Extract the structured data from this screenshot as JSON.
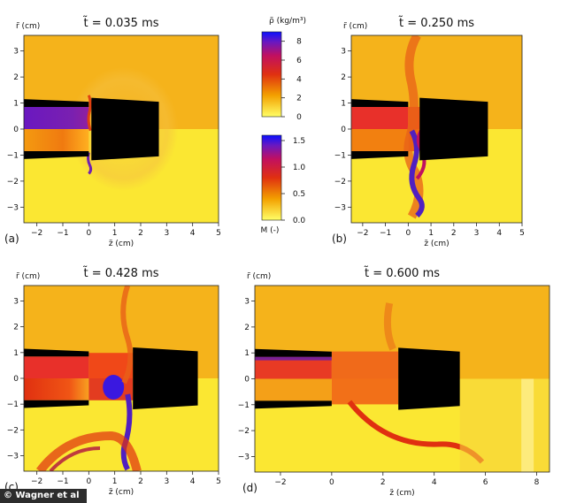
{
  "chart_data": [
    {
      "type": "heatmap",
      "panel_label": "(a)",
      "title": "t̃ = 0.035 ms",
      "xlabel": "z̃ (cm)",
      "ylabel": "r̃ (cm)",
      "xlim": [
        -2.5,
        5
      ],
      "ylim": [
        -3.6,
        3.6
      ],
      "xticks": [
        -2,
        -1,
        0,
        1,
        2,
        3,
        4,
        5
      ],
      "yticks": [
        -3,
        -2,
        -1,
        0,
        1,
        2,
        3
      ],
      "nozzle_tip_z": 0,
      "obstacle_z": [
        0.1,
        2.7
      ],
      "density_stem_peak_kg_m3": 6.5,
      "mach_region_peak": 0.8
    },
    {
      "type": "heatmap",
      "panel_label": "(b)",
      "title": "t̃ = 0.250 ms",
      "xlabel": "z̃ (cm)",
      "ylabel": "r̃ (cm)",
      "xlim": [
        -2.5,
        5
      ],
      "ylim": [
        -3.6,
        3.6
      ],
      "xticks": [
        -2,
        -1,
        0,
        1,
        2,
        3,
        4,
        5
      ],
      "yticks": [
        -3,
        -2,
        -1,
        0,
        1,
        2,
        3
      ],
      "nozzle_tip_z": 0,
      "obstacle_z": [
        0.5,
        3.5
      ],
      "mach_region_peak": 1.3
    },
    {
      "type": "heatmap",
      "panel_label": "(c)",
      "title": "t̃ = 0.428 ms",
      "xlabel": "z̃ (cm)",
      "ylabel": "r̃ (cm)",
      "xlim": [
        -2.5,
        5
      ],
      "ylim": [
        -3.6,
        3.6
      ],
      "xticks": [
        -2,
        -1,
        0,
        1,
        2,
        3,
        4,
        5
      ],
      "yticks": [
        -3,
        -2,
        -1,
        0,
        1,
        2,
        3
      ],
      "nozzle_tip_z": 0,
      "obstacle_z": [
        1.7,
        4.2
      ],
      "mach_region_peak": 1.5
    },
    {
      "type": "heatmap",
      "panel_label": "(d)",
      "title": "t̃ = 0.600 ms",
      "xlabel": "z̃ (cm)",
      "ylabel": "r̃ (cm)",
      "xlim": [
        -3,
        8.5
      ],
      "ylim": [
        -3.6,
        3.6
      ],
      "xticks": [
        -2,
        0,
        2,
        4,
        6,
        8
      ],
      "yticks": [
        -3,
        -2,
        -1,
        0,
        1,
        2,
        3
      ],
      "nozzle_tip_z": 0,
      "obstacle_z": [
        2.6,
        5.0
      ],
      "mach_region_peak": 0.9
    },
    {
      "type": "colorbar",
      "label": "ρ̃ (kg/m³)",
      "range": [
        0,
        9
      ],
      "ticks": [
        0,
        2,
        4,
        6,
        8
      ],
      "colormap": [
        "#ffff66",
        "#f3a000",
        "#e03010",
        "#c11060",
        "#6a18c0",
        "#0a10ff"
      ]
    },
    {
      "type": "colorbar",
      "label": "M (-)",
      "range": [
        0,
        1.6
      ],
      "ticks": [
        "0.0",
        "0.5",
        "1.0",
        "1.5"
      ],
      "colormap": [
        "#ffff66",
        "#f3a000",
        "#e03010",
        "#c11060",
        "#6a18c0",
        "#0a10ff"
      ]
    }
  ],
  "credit": "© Wagner et al"
}
